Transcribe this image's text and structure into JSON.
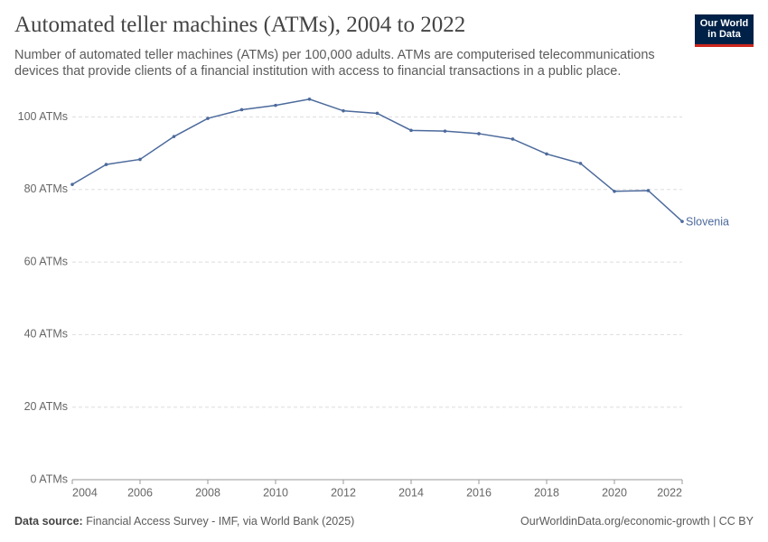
{
  "chart_data": {
    "type": "line",
    "title": "Automated teller machines (ATMs), 2004 to 2022",
    "subtitle": "Number of automated teller machines (ATMs) per 100,000 adults. ATMs are computerised telecommunications devices that provide clients of a financial institution with access to financial transactions in a public place.",
    "logo": [
      "Our World",
      "in Data"
    ],
    "source_label": "Data source:",
    "source": "Financial Access Survey - IMF, via World Bank (2025)",
    "footer": "OurWorldinData.org/economic-growth | CC BY",
    "x": [
      2004,
      2005,
      2006,
      2007,
      2008,
      2009,
      2010,
      2011,
      2012,
      2013,
      2014,
      2015,
      2016,
      2017,
      2018,
      2019,
      2020,
      2021,
      2022
    ],
    "series": [
      {
        "name": "Slovenia",
        "color": "#4c6a9c",
        "values": [
          81.4,
          86.9,
          88.3,
          94.6,
          99.6,
          102.0,
          103.2,
          104.9,
          101.7,
          101.0,
          96.3,
          96.1,
          95.4,
          93.9,
          89.8,
          87.2,
          79.5,
          79.7,
          71.2
        ]
      }
    ],
    "xlim": [
      2004,
      2022
    ],
    "xticks": [
      2004,
      2006,
      2008,
      2010,
      2012,
      2014,
      2016,
      2018,
      2020,
      2022
    ],
    "ylim": [
      0,
      105
    ],
    "yticks": [
      {
        "value": 0,
        "label": "0 ATMs"
      },
      {
        "value": 20,
        "label": "20 ATMs"
      },
      {
        "value": 40,
        "label": "40 ATMs"
      },
      {
        "value": 60,
        "label": "60 ATMs"
      },
      {
        "value": 80,
        "label": "80 ATMs"
      },
      {
        "value": 100,
        "label": "100 ATMs"
      }
    ],
    "grid": true
  }
}
